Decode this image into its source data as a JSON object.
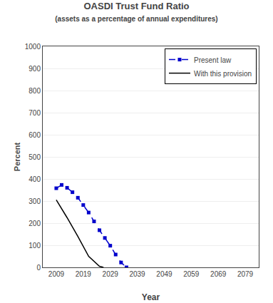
{
  "chart_data": {
    "type": "line",
    "title": "OASDI Trust Fund Ratio",
    "subtitle": "(assets as a percentage of annual expenditures)",
    "xlabel": "Year",
    "ylabel": "Percent",
    "xlim": [
      2004,
      2084
    ],
    "xticks": [
      2009,
      2019,
      2029,
      2039,
      2049,
      2059,
      2069,
      2079
    ],
    "ylim": [
      0,
      1000
    ],
    "yticks": [
      0,
      100,
      200,
      300,
      400,
      500,
      600,
      700,
      800,
      900,
      1000
    ],
    "grid": "y",
    "legend": "upper right",
    "series": [
      {
        "name": "With this provision",
        "color": "#000000",
        "line_style": "solid",
        "x": [
          2009,
          2013,
          2017,
          2021,
          2025,
          2026.5
        ],
        "values": [
          305,
          225,
          140,
          50,
          5,
          0
        ]
      },
      {
        "name": "Present law",
        "color": "#0000cc",
        "line_style": "dashed",
        "marker": "square",
        "x": [
          2009,
          2011,
          2013,
          2015,
          2017,
          2019,
          2021,
          2023,
          2025,
          2027,
          2029,
          2031,
          2033,
          2035
        ],
        "values": [
          358,
          373,
          360,
          340,
          315,
          282,
          248,
          208,
          168,
          133,
          98,
          58,
          22,
          0
        ]
      }
    ]
  }
}
